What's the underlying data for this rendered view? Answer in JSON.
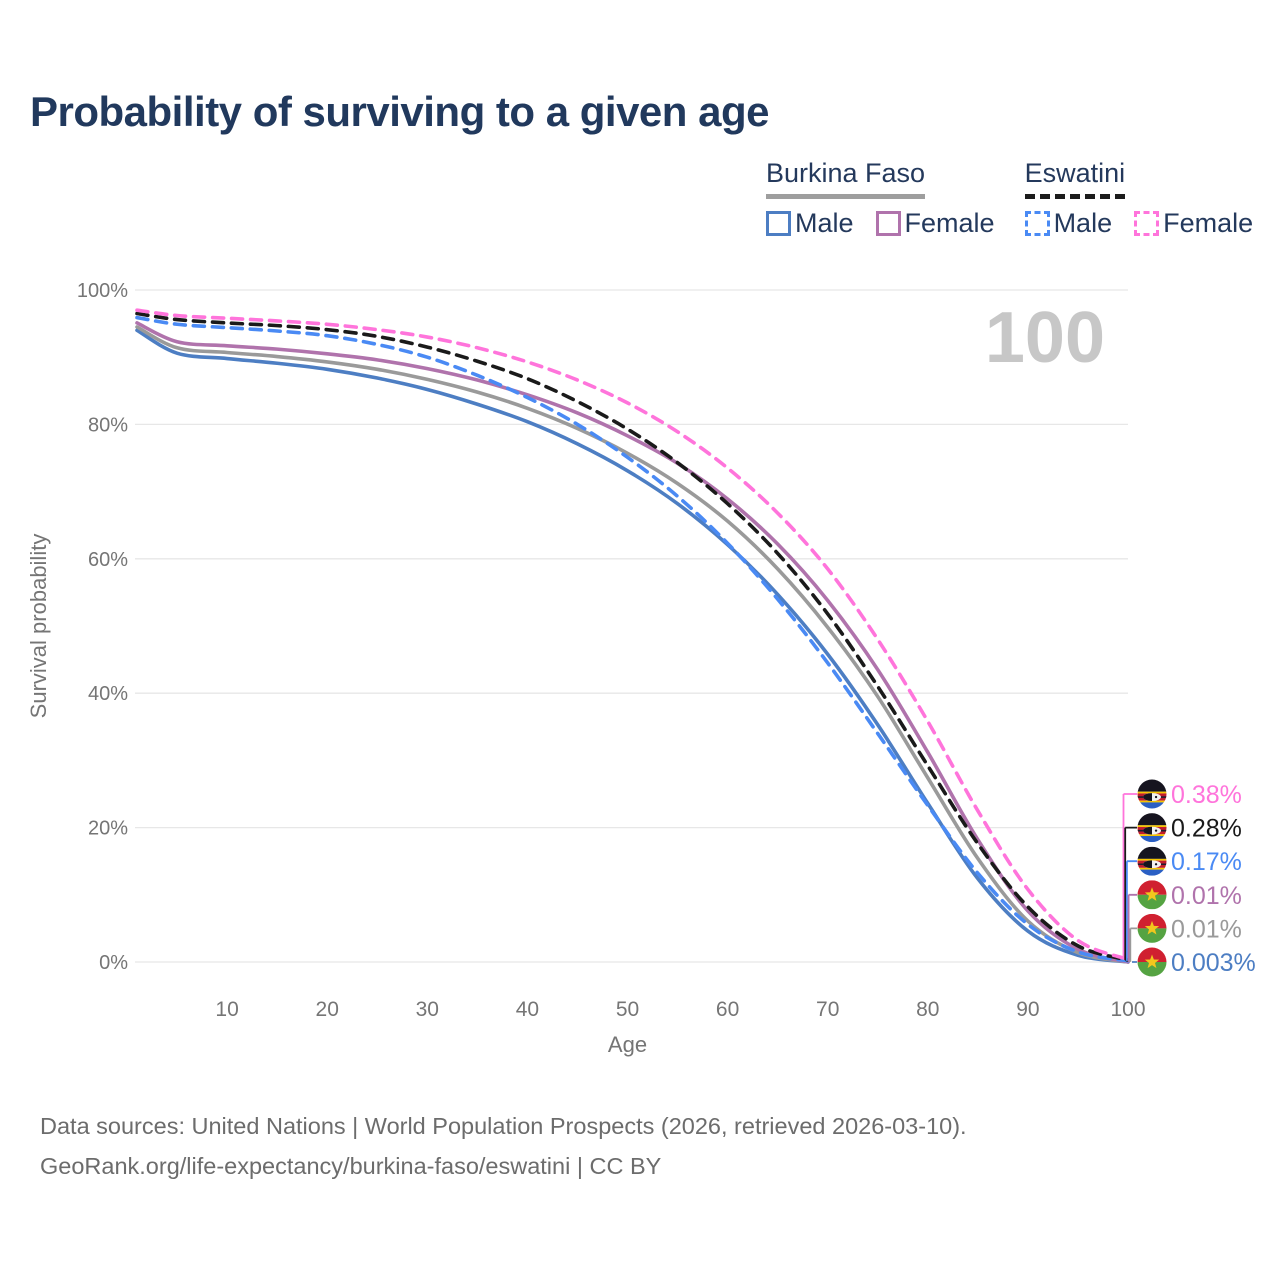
{
  "title": "Probability of surviving to a given age",
  "legend": {
    "groups": [
      {
        "name": "Burkina Faso",
        "line_style": "solid",
        "underline_color": "#9e9e9e",
        "items": [
          {
            "label": "Male",
            "color": "#4d7ec3",
            "dash": false
          },
          {
            "label": "Female",
            "color": "#b073ac",
            "dash": false
          }
        ]
      },
      {
        "name": "Eswatini",
        "line_style": "dashed",
        "underline_color": "#1c1c1c",
        "items": [
          {
            "label": "Male",
            "color": "#4a8af4",
            "dash": true
          },
          {
            "label": "Female",
            "color": "#ff74db",
            "dash": true
          }
        ]
      }
    ]
  },
  "chart_data": {
    "type": "line",
    "title": "Probability of surviving to a given age",
    "xlabel": "Age",
    "ylabel": "Survival probability",
    "xlim": [
      0,
      100
    ],
    "ylim": [
      0,
      100
    ],
    "grid": "horizontal",
    "legend_position": "top-right",
    "annotation": "100",
    "x_ticks": [
      10,
      20,
      30,
      40,
      50,
      60,
      70,
      80,
      90,
      100
    ],
    "y_ticks": [
      {
        "value": 0,
        "label": "0%"
      },
      {
        "value": 20,
        "label": "20%"
      },
      {
        "value": 40,
        "label": "40%"
      },
      {
        "value": 60,
        "label": "60%"
      },
      {
        "value": 80,
        "label": "80%"
      },
      {
        "value": 100,
        "label": "100%"
      }
    ],
    "x": [
      1,
      5,
      10,
      15,
      20,
      25,
      30,
      35,
      40,
      45,
      50,
      55,
      60,
      65,
      70,
      75,
      80,
      85,
      90,
      95,
      100
    ],
    "series": [
      {
        "name": "Eswatini Female",
        "country": "Eswatini",
        "flag": "eswatini",
        "color": "#ff74db",
        "dash": true,
        "end_label": "0.38%",
        "values": [
          97.0,
          96.2,
          95.8,
          95.4,
          94.9,
          94.1,
          93.0,
          91.4,
          89.3,
          86.6,
          83.2,
          78.9,
          73.5,
          66.8,
          58.5,
          48.0,
          35.8,
          22.5,
          10.8,
          3.2,
          0.38
        ]
      },
      {
        "name": "Eswatini Both sexes",
        "country": "Eswatini",
        "flag": "eswatini",
        "color": "#1a1a1a",
        "dash": true,
        "end_label": "0.28%",
        "values": [
          96.5,
          95.6,
          95.1,
          94.7,
          94.1,
          93.1,
          91.5,
          89.4,
          86.8,
          83.4,
          79.3,
          74.3,
          68.2,
          60.8,
          51.8,
          41.0,
          29.2,
          17.6,
          8.2,
          2.4,
          0.28
        ]
      },
      {
        "name": "Eswatini Male",
        "country": "Eswatini",
        "flag": "eswatini",
        "color": "#4a8af4",
        "dash": true,
        "end_label": "0.17%",
        "values": [
          95.9,
          94.9,
          94.4,
          93.9,
          93.2,
          91.9,
          90.0,
          87.3,
          84.0,
          80.0,
          75.1,
          69.3,
          62.3,
          54.0,
          44.5,
          34.0,
          23.3,
          13.2,
          5.6,
          1.5,
          0.17
        ]
      },
      {
        "name": "Burkina Faso Female",
        "country": "Burkina Faso",
        "flag": "burkina-faso",
        "color": "#b073ac",
        "dash": false,
        "end_label": "0.01%",
        "values": [
          95.1,
          92.3,
          91.7,
          91.2,
          90.5,
          89.6,
          88.3,
          86.6,
          84.4,
          81.7,
          78.3,
          74.2,
          68.9,
          62.2,
          53.8,
          43.5,
          31.2,
          18.2,
          7.6,
          1.9,
          0.01
        ]
      },
      {
        "name": "Burkina Faso Both sexes",
        "country": "Burkina Faso",
        "flag": "burkina-faso",
        "color": "#9a9a9a",
        "dash": false,
        "end_label": "0.01%",
        "values": [
          94.5,
          91.4,
          90.7,
          90.1,
          89.3,
          88.2,
          86.7,
          84.8,
          82.4,
          79.4,
          75.7,
          71.2,
          65.6,
          58.5,
          49.8,
          39.5,
          27.4,
          15.4,
          6.1,
          1.4,
          0.01
        ]
      },
      {
        "name": "Burkina Faso Male",
        "country": "Burkina Faso",
        "flag": "burkina-faso",
        "color": "#4d7ec3",
        "dash": false,
        "end_label": "0.003%",
        "values": [
          94.0,
          90.6,
          89.8,
          89.1,
          88.2,
          86.9,
          85.2,
          83.0,
          80.4,
          77.1,
          73.1,
          68.2,
          62.1,
          54.7,
          45.8,
          35.3,
          23.6,
          12.4,
          4.6,
          1.0,
          0.003
        ]
      }
    ]
  },
  "colors": {
    "title_text": "#21395d",
    "axis_text": "#757575",
    "gridline": "#e7e7e7",
    "annotation_text": "#c7c7c7",
    "footer_text": "#6c6c6c"
  },
  "footer": {
    "line1": "Data sources: United Nations | World Population Prospects (2026, retrieved 2026-03-10).",
    "line2": "GeoRank.org/life-expectancy/burkina-faso/eswatini | CC BY"
  }
}
